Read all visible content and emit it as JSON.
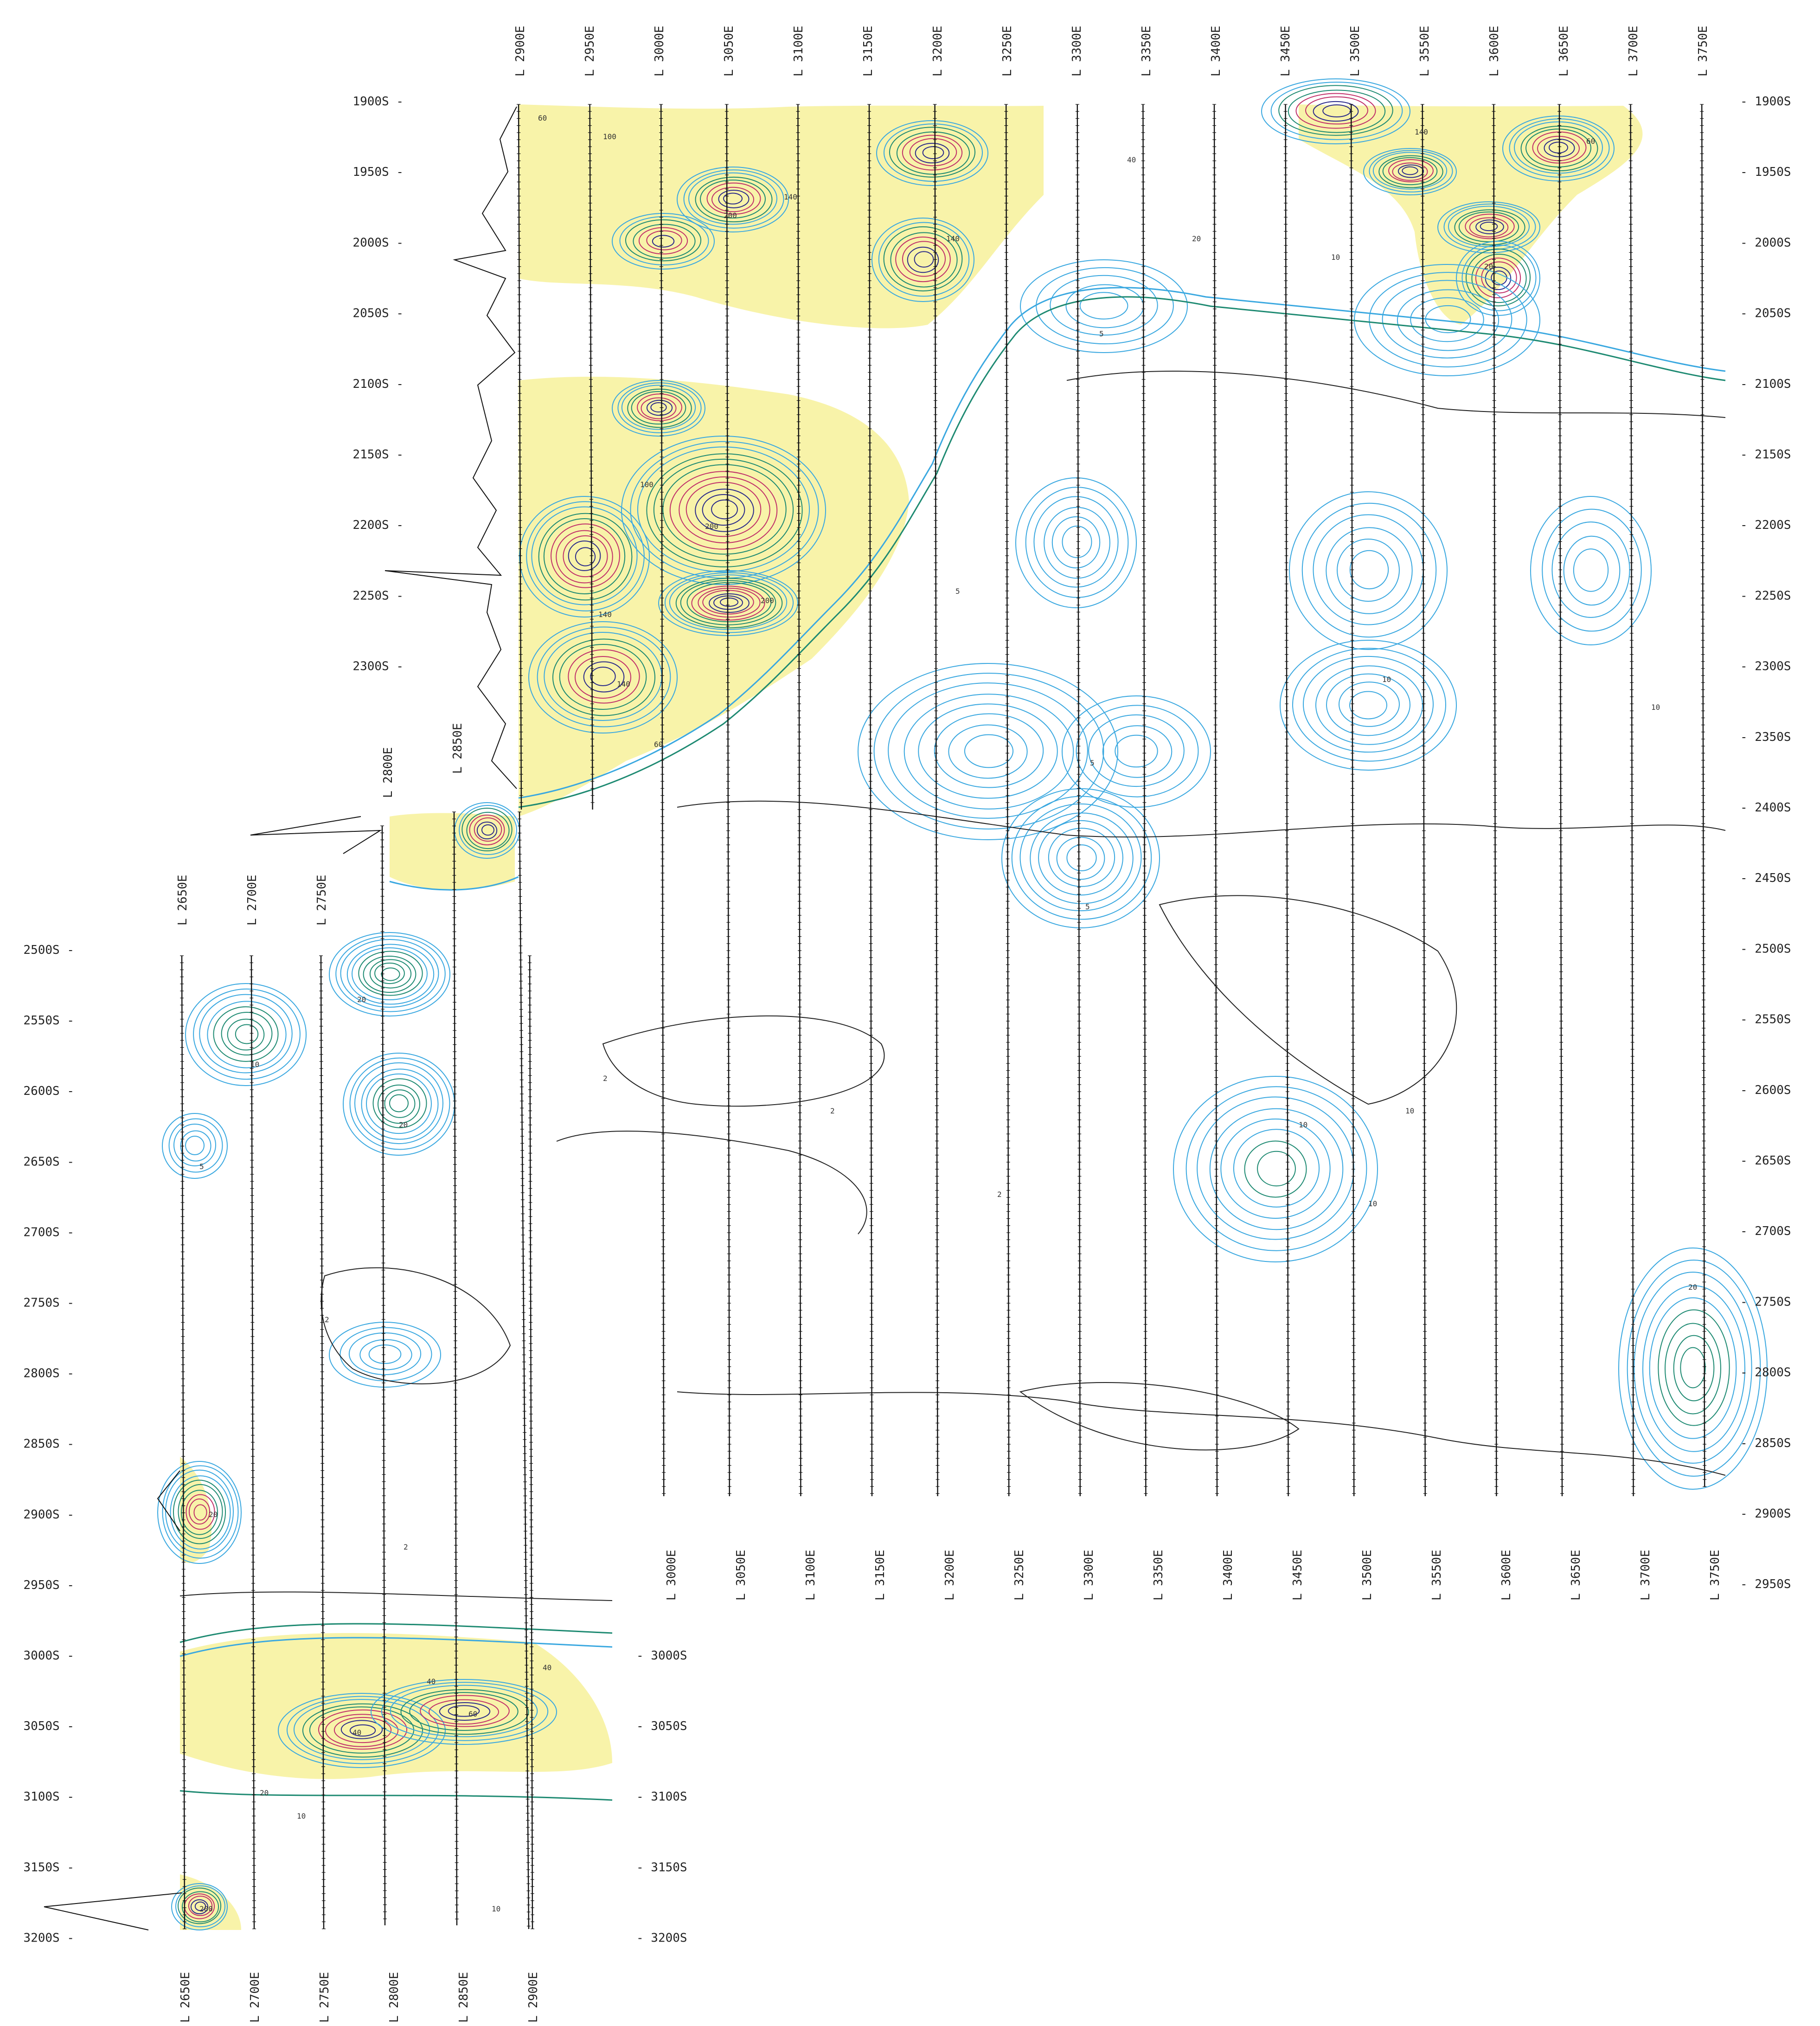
{
  "map": {
    "north_labels_upper_left": [
      "1900S",
      "1950S",
      "2000S",
      "2050S",
      "2100S",
      "2150S",
      "2200S",
      "2250S",
      "2300S"
    ],
    "north_labels_upper_right": [
      "1900S",
      "1950S",
      "2000S",
      "2050S",
      "2100S",
      "2150S",
      "2200S",
      "2250S",
      "2300S",
      "2350S",
      "2400S",
      "2450S",
      "2500S",
      "2550S",
      "2600S",
      "2650S",
      "2700S",
      "2750S",
      "2800S",
      "2850S",
      "2900S",
      "2950S"
    ],
    "north_labels_lower_left": [
      "2500S",
      "2550S",
      "2600S",
      "2650S",
      "2700S",
      "2750S",
      "2800S",
      "2850S",
      "2900S",
      "2950S",
      "3000S",
      "3050S",
      "3100S",
      "3150S",
      "3200S"
    ],
    "north_labels_lower_right": [
      "3000S",
      "3050S",
      "3100S",
      "3150S",
      "3200S"
    ],
    "east_labels_top": [
      "L 2900E",
      "L 2950E",
      "L 3000E",
      "L 3050E",
      "L 3100E",
      "L 3150E",
      "L 3200E",
      "L 3250E",
      "L 3300E",
      "L 3350E",
      "L 3400E",
      "L 3450E",
      "L 3500E",
      "L 3550E",
      "L 3600E",
      "L 3650E",
      "L 3700E",
      "L 3750E"
    ],
    "east_labels_mid": [
      "L 2800E",
      "L 2850E"
    ],
    "east_labels_lower_block_top": [
      "L 2650E",
      "L 2700E",
      "L 2750E"
    ],
    "east_labels_bottom_right": [
      "L 3000E",
      "L 3050E",
      "L 3100E",
      "L 3150E",
      "L 3200E",
      "L 3250E",
      "L 3300E",
      "L 3350E",
      "L 3400E",
      "L 3450E",
      "L 3500E",
      "L 3550E",
      "L 3600E",
      "L 3650E",
      "L 3700E",
      "L 3750E"
    ],
    "east_labels_bottom_left": [
      "L 2650E",
      "L 2700E",
      "L 2750E",
      "L 2800E",
      "L 2850E",
      "L 2900E"
    ],
    "contour_labels": [
      "2",
      "5",
      "10",
      "20",
      "40",
      "60",
      "100",
      "140",
      "200"
    ],
    "colors": {
      "low_contour": "#3aa8e0",
      "mid_contour": "#1e8a72",
      "high_fill": "#f7f2a0",
      "high_contour": "#c0306a",
      "peak_contour": "#2a2a8a",
      "base_contour": "#222222",
      "survey_line": "#111111"
    }
  }
}
